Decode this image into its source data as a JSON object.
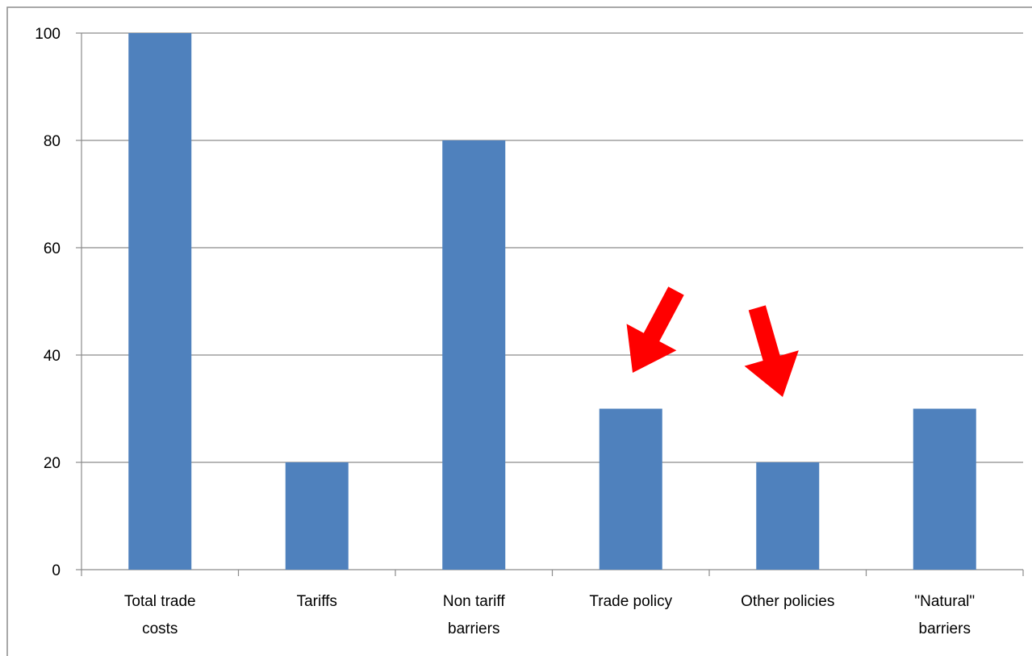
{
  "chart_data": {
    "type": "bar",
    "title": "",
    "xlabel": "",
    "ylabel": "",
    "categories": [
      [
        "Total trade",
        "costs"
      ],
      [
        "Tariffs"
      ],
      [
        "Non tariff",
        "barriers"
      ],
      [
        "Trade policy"
      ],
      [
        "Other policies"
      ],
      [
        "\"Natural\"",
        "barriers"
      ]
    ],
    "values": [
      100,
      20,
      80,
      30,
      20,
      30
    ],
    "ylim": [
      0,
      100
    ],
    "yticks": [
      0,
      20,
      40,
      60,
      80,
      100
    ],
    "grid": true,
    "bar_color": "#4F81BD",
    "annotations": [
      {
        "type": "arrow",
        "target_category_index": 3,
        "color": "#FF0000"
      },
      {
        "type": "arrow",
        "target_category_index": 4,
        "color": "#FF0000"
      }
    ]
  }
}
